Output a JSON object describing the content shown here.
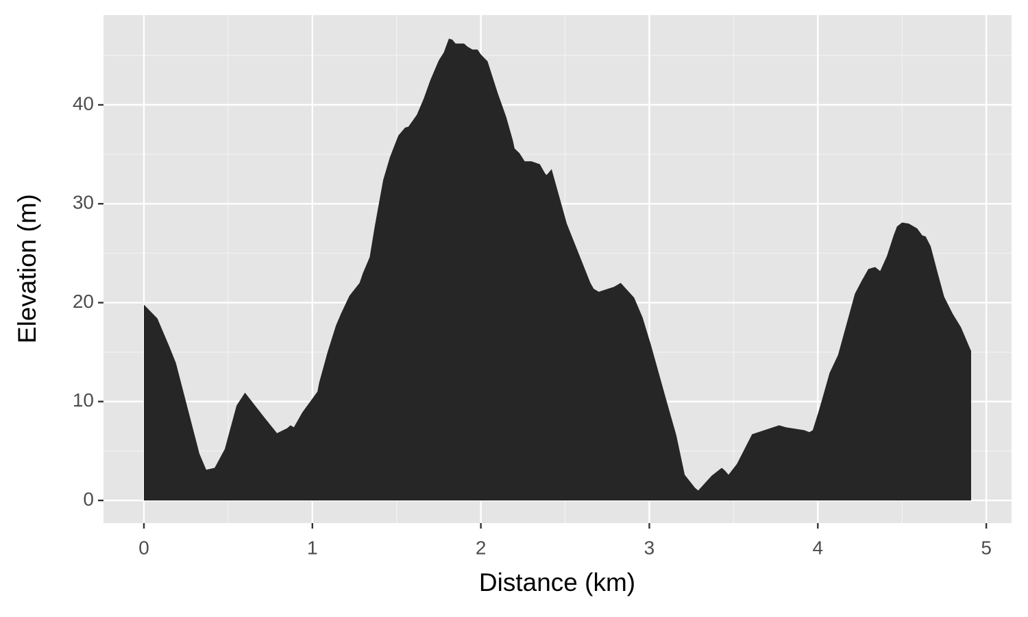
{
  "chart_data": {
    "type": "area",
    "x_label": "Distance (km)",
    "y_label": "Elevation (m)",
    "color": "#262626",
    "panel_color": "#e5e5e5",
    "grid": true,
    "xlim": [
      -0.24,
      5.15
    ],
    "ylim": [
      -2.29,
      49.08
    ],
    "xticks": [
      0,
      1,
      2,
      3,
      4,
      5
    ],
    "yticks": [
      0,
      10,
      20,
      30,
      40
    ],
    "x": [
      0,
      0.08,
      0.15,
      0.19,
      0.33,
      0.37,
      0.42,
      0.48,
      0.55,
      0.6,
      0.71,
      0.79,
      0.85,
      0.87,
      0.89,
      0.94,
      0.97,
      1.03,
      1.04,
      1.09,
      1.14,
      1.17,
      1.22,
      1.28,
      1.3,
      1.34,
      1.37,
      1.42,
      1.46,
      1.51,
      1.55,
      1.57,
      1.62,
      1.66,
      1.7,
      1.75,
      1.78,
      1.81,
      1.83,
      1.85,
      1.9,
      1.92,
      1.95,
      1.98,
      2.0,
      2.04,
      2.07,
      2.1,
      2.15,
      2.19,
      2.2,
      2.23,
      2.26,
      2.3,
      2.35,
      2.38,
      2.39,
      2.42,
      2.51,
      2.65,
      2.67,
      2.7,
      2.79,
      2.82,
      2.83,
      2.91,
      2.96,
      3.01,
      3.1,
      3.16,
      3.21,
      3.27,
      3.29,
      3.37,
      3.43,
      3.45,
      3.47,
      3.52,
      3.61,
      3.77,
      3.81,
      3.92,
      3.95,
      3.97,
      4.01,
      4.07,
      4.12,
      4.22,
      4.26,
      4.3,
      4.34,
      4.37,
      4.41,
      4.45,
      4.47,
      4.5,
      4.54,
      4.59,
      4.62,
      4.64,
      4.67,
      4.71,
      4.75,
      4.8,
      4.85,
      4.91
    ],
    "y": [
      19.8,
      18.4,
      15.6,
      13.9,
      4.7,
      3.1,
      3.3,
      5.2,
      9.6,
      10.9,
      8.5,
      6.8,
      7.3,
      7.6,
      7.4,
      8.9,
      9.6,
      11.0,
      11.9,
      15.0,
      17.7,
      18.9,
      20.7,
      22.0,
      23.0,
      24.6,
      27.7,
      32.4,
      34.7,
      36.9,
      37.7,
      37.8,
      39.0,
      40.6,
      42.5,
      44.5,
      45.3,
      46.7,
      46.6,
      46.2,
      46.2,
      45.9,
      45.6,
      45.6,
      45.1,
      44.4,
      42.8,
      41.2,
      38.8,
      36.4,
      35.6,
      35.1,
      34.3,
      34.3,
      34.0,
      33.1,
      32.9,
      33.5,
      28.0,
      22.0,
      21.4,
      21.1,
      21.6,
      21.9,
      22.0,
      20.5,
      18.5,
      15.7,
      10.2,
      6.6,
      2.6,
      1.3,
      1.0,
      2.5,
      3.3,
      3.0,
      2.6,
      3.7,
      6.7,
      7.6,
      7.4,
      7.1,
      6.9,
      7.1,
      9.3,
      12.9,
      14.7,
      20.9,
      22.2,
      23.4,
      23.6,
      23.2,
      24.7,
      26.8,
      27.7,
      28.1,
      28.0,
      27.5,
      26.8,
      26.7,
      25.7,
      23.1,
      20.6,
      18.9,
      17.5,
      15.1
    ]
  }
}
